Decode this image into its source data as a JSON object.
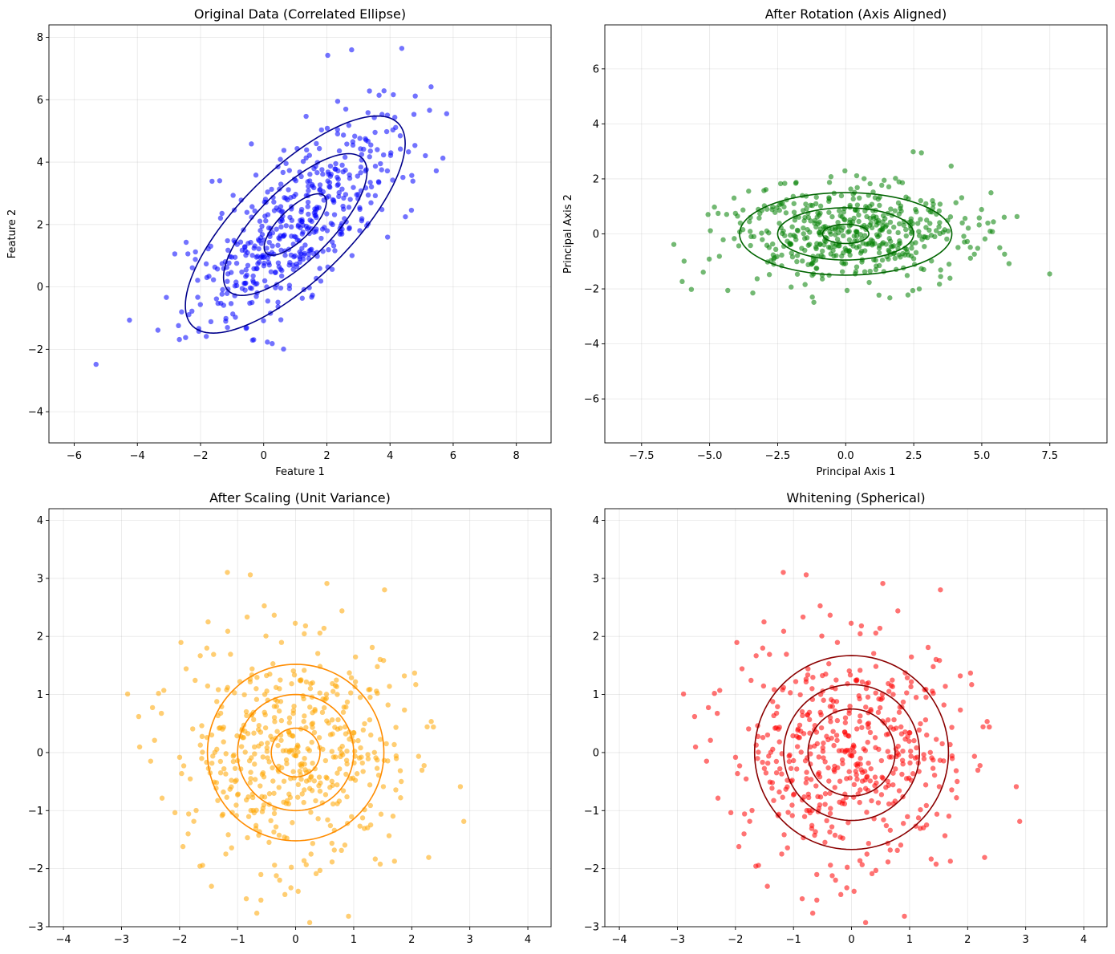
{
  "chart_data": [
    {
      "type": "scatter",
      "title": "Original Data (Correlated Ellipse)",
      "xlabel": "Feature 1",
      "ylabel": "Feature 2",
      "xlim": [
        -6.8,
        9.1
      ],
      "ylim": [
        -5.0,
        8.4
      ],
      "xticks": [
        -6,
        -4,
        -2,
        0,
        2,
        4,
        6,
        8
      ],
      "yticks": [
        -4,
        -2,
        0,
        2,
        4,
        6,
        8
      ],
      "grid": true,
      "point_color": "#0000ff",
      "contour_color": "#00008b",
      "seed": 11,
      "n_points": 500,
      "distribution": {
        "center": [
          1.0,
          2.0
        ],
        "std_major": 2.2,
        "std_minor": 0.9,
        "angle_deg": 45
      },
      "contours": [
        {
          "center": [
            1.0,
            2.0
          ],
          "half_width": 1.3,
          "half_height": 0.5,
          "angle_deg": 45
        },
        {
          "center": [
            1.0,
            2.0
          ],
          "half_width": 3.0,
          "half_height": 1.15,
          "angle_deg": 45
        },
        {
          "center": [
            1.0,
            2.0
          ],
          "half_width": 4.6,
          "half_height": 1.75,
          "angle_deg": 45
        }
      ]
    },
    {
      "type": "scatter",
      "title": "After Rotation (Axis Aligned)",
      "xlabel": "Principal Axis 1",
      "ylabel": "Principal Axis 2",
      "xlim": [
        -8.85,
        9.6
      ],
      "ylim": [
        -7.6,
        7.6
      ],
      "xticks": [
        -7.5,
        -5.0,
        -2.5,
        0.0,
        2.5,
        5.0,
        7.5
      ],
      "yticks": [
        -6,
        -4,
        -2,
        0,
        2,
        4,
        6
      ],
      "tick_decimals_x": 1,
      "grid": true,
      "point_color": "#008000",
      "contour_color": "#006400",
      "seed": 23,
      "n_points": 500,
      "distribution": {
        "center": [
          0.0,
          0.0
        ],
        "std_major": 2.2,
        "std_minor": 0.9,
        "angle_deg": 0
      },
      "contours": [
        {
          "center": [
            0.0,
            0.0
          ],
          "half_width": 0.85,
          "half_height": 0.35,
          "angle_deg": 0
        },
        {
          "center": [
            0.0,
            0.0
          ],
          "half_width": 2.5,
          "half_height": 0.95,
          "angle_deg": 0
        },
        {
          "center": [
            0.0,
            0.0
          ],
          "half_width": 3.9,
          "half_height": 1.5,
          "angle_deg": 0
        }
      ]
    },
    {
      "type": "scatter",
      "title": "After Scaling (Unit Variance)",
      "xlabel": "",
      "ylabel": "",
      "xlim": [
        -4.25,
        4.4
      ],
      "ylim": [
        -3.0,
        4.2
      ],
      "xticks": [
        -4,
        -3,
        -2,
        -1,
        0,
        1,
        2,
        3,
        4
      ],
      "yticks": [
        -3,
        -2,
        -1,
        0,
        1,
        2,
        3,
        4
      ],
      "grid": true,
      "point_color": "#ffa500",
      "contour_color": "#ff8c00",
      "seed": 37,
      "n_points": 500,
      "distribution": {
        "center": [
          0.0,
          0.0
        ],
        "std_major": 1.0,
        "std_minor": 1.0,
        "angle_deg": 0
      },
      "contours": [
        {
          "center": [
            0.0,
            0.0
          ],
          "half_width": 0.42,
          "half_height": 0.42,
          "angle_deg": 0
        },
        {
          "center": [
            0.0,
            0.0
          ],
          "half_width": 1.0,
          "half_height": 1.0,
          "angle_deg": 0
        },
        {
          "center": [
            0.0,
            0.0
          ],
          "half_width": 1.52,
          "half_height": 1.52,
          "angle_deg": 0
        }
      ]
    },
    {
      "type": "scatter",
      "title": "Whitening (Spherical)",
      "xlabel": "",
      "ylabel": "",
      "xlim": [
        -4.25,
        4.4
      ],
      "ylim": [
        -3.0,
        4.2
      ],
      "xticks": [
        -4,
        -3,
        -2,
        -1,
        0,
        1,
        2,
        3,
        4
      ],
      "yticks": [
        -3,
        -2,
        -1,
        0,
        1,
        2,
        3,
        4
      ],
      "grid": true,
      "point_color": "#ff0000",
      "contour_color": "#8b0000",
      "seed": 37,
      "n_points": 500,
      "distribution": {
        "center": [
          0.0,
          0.0
        ],
        "std_major": 1.0,
        "std_minor": 1.0,
        "angle_deg": 0
      },
      "contours": [
        {
          "center": [
            0.0,
            0.0
          ],
          "half_width": 0.75,
          "half_height": 0.75,
          "angle_deg": 0
        },
        {
          "center": [
            0.0,
            0.0
          ],
          "half_width": 1.17,
          "half_height": 1.17,
          "angle_deg": 0
        },
        {
          "center": [
            0.0,
            0.0
          ],
          "half_width": 1.67,
          "half_height": 1.67,
          "angle_deg": 0
        }
      ]
    }
  ]
}
